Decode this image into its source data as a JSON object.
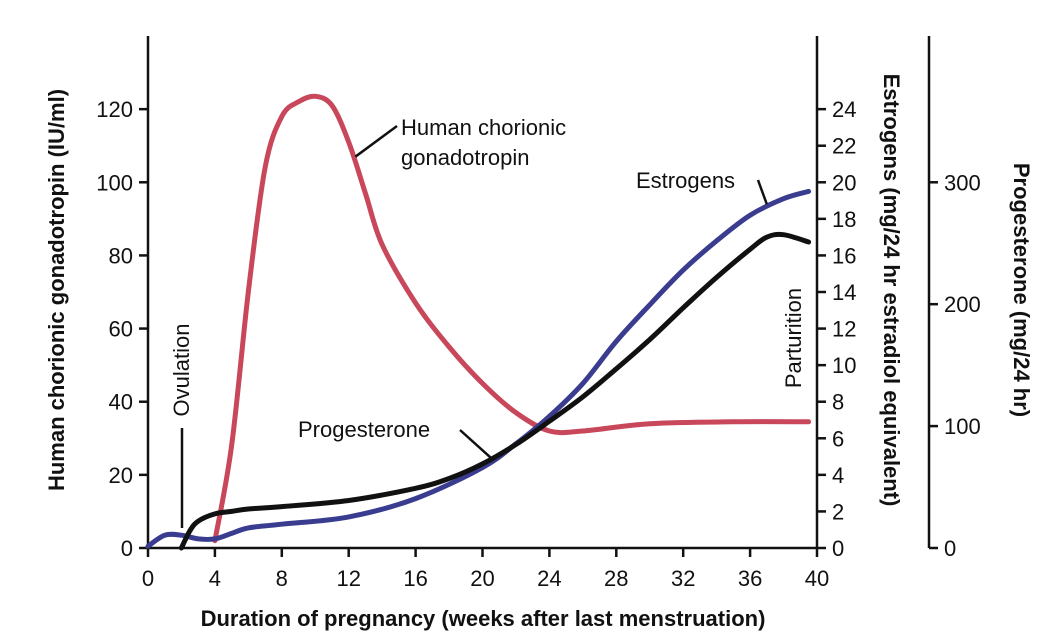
{
  "chart_data": {
    "type": "line",
    "title": "",
    "xlabel": "Duration of pregnancy (weeks after last menstruation)",
    "xlim": [
      0,
      40
    ],
    "xticks": [
      0,
      4,
      8,
      12,
      16,
      20,
      24,
      28,
      32,
      36,
      40
    ],
    "grid": false,
    "axes": {
      "hcg": {
        "label": "Human chorionic gonadotropin (IU/ml)",
        "side": "left",
        "range": [
          0,
          140
        ],
        "ticks": [
          0,
          20,
          40,
          60,
          80,
          100,
          120
        ]
      },
      "estrogens": {
        "label": "Estrogens (mg/24 hr estradiol equivalent)",
        "side": "right",
        "range": [
          0,
          28
        ],
        "ticks": [
          0,
          2,
          4,
          6,
          8,
          10,
          12,
          14,
          16,
          18,
          20,
          22,
          24
        ]
      },
      "progesterone": {
        "label": "Progesterone (mg/24 hr)",
        "side": "far-right",
        "range": [
          0,
          420
        ],
        "ticks": [
          0,
          100,
          200,
          300
        ]
      }
    },
    "series": [
      {
        "name": "Human chorionic gonadotropin",
        "axis": "hcg",
        "color": "#c8475a",
        "x": [
          4,
          5,
          6,
          7,
          8,
          9,
          10,
          11,
          12,
          13,
          14,
          16,
          18,
          20,
          22,
          24,
          26,
          30,
          35,
          39.5
        ],
        "y": [
          2,
          28,
          70,
          104,
          118,
          122,
          123.5,
          121,
          111,
          97,
          83,
          67,
          55,
          45,
          37,
          32,
          32,
          34,
          34.5,
          34.5
        ]
      },
      {
        "name": "Estrogens",
        "axis": "estrogens",
        "color": "#3a3d8f",
        "x": [
          0,
          1,
          2,
          3,
          4,
          5,
          6,
          8,
          12,
          16,
          20,
          22,
          24,
          26,
          28,
          30,
          32,
          34,
          36,
          38,
          39.5
        ],
        "y": [
          0.1,
          0.7,
          0.7,
          0.5,
          0.5,
          0.8,
          1.1,
          1.3,
          1.7,
          2.7,
          4.4,
          5.7,
          7.2,
          9.0,
          11.3,
          13.3,
          15.2,
          16.8,
          18.2,
          19.1,
          19.5
        ]
      },
      {
        "name": "Progesterone",
        "axis": "progesterone",
        "color": "#111111",
        "x": [
          2,
          2.5,
          3,
          4,
          5,
          6,
          8,
          12,
          16,
          18,
          20,
          22,
          24,
          26,
          28,
          30,
          32,
          34,
          36,
          37,
          38,
          39.5
        ],
        "y": [
          0,
          14,
          22,
          28,
          30,
          32,
          34,
          39,
          49,
          57,
          69,
          85,
          104,
          124,
          147,
          171,
          197,
          222,
          245,
          255,
          257,
          251
        ]
      }
    ],
    "annotations": [
      {
        "text": "Ovulation",
        "x": 2,
        "orientation": "vertical"
      },
      {
        "text": "Parturition",
        "x": 39,
        "orientation": "vertical"
      }
    ],
    "series_labels": {
      "hcg": [
        "Human chorionic",
        "gonadotropin"
      ],
      "estrogens": "Estrogens",
      "progesterone": "Progesterone"
    }
  }
}
